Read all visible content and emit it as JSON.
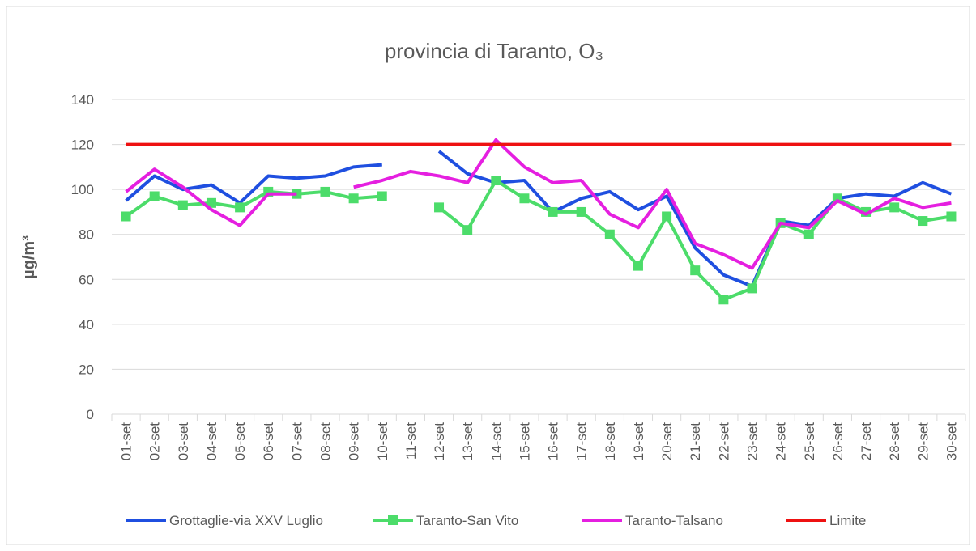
{
  "chart_data": {
    "type": "line",
    "title": "provincia di Taranto, O₃",
    "y_label": "µg/m³",
    "categories": [
      "01-set",
      "02-set",
      "03-set",
      "04-set",
      "05-set",
      "06-set",
      "07-set",
      "08-set",
      "09-set",
      "10-set",
      "11-set",
      "12-set",
      "13-set",
      "14-set",
      "15-set",
      "16-set",
      "17-set",
      "18-set",
      "19-set",
      "20-set",
      "21-set",
      "22-set",
      "23-set",
      "24-set",
      "25-set",
      "26-set",
      "27-set",
      "28-set",
      "29-set",
      "30-set"
    ],
    "series": [
      {
        "name": "Grottaglie-via XXV Luglio",
        "color": "#1f4fe0",
        "marker": false,
        "values": [
          95,
          106,
          100,
          102,
          94,
          106,
          105,
          106,
          110,
          111,
          null,
          117,
          107,
          103,
          104,
          90,
          96,
          99,
          91,
          97,
          74,
          62,
          57,
          86,
          84,
          96,
          98,
          97,
          103,
          98
        ]
      },
      {
        "name": "Taranto-San Vito",
        "color": "#4cdc6a",
        "marker": true,
        "values": [
          88,
          97,
          93,
          94,
          92,
          99,
          98,
          99,
          96,
          97,
          null,
          92,
          82,
          104,
          96,
          90,
          90,
          80,
          66,
          88,
          64,
          51,
          56,
          85,
          80,
          96,
          90,
          92,
          86,
          88
        ]
      },
      {
        "name": "Taranto-Talsano",
        "color": "#e51fe0",
        "marker": false,
        "values": [
          99,
          109,
          101,
          91,
          84,
          98,
          98,
          null,
          101,
          104,
          108,
          106,
          103,
          122,
          110,
          103,
          104,
          89,
          83,
          100,
          76,
          71,
          65,
          85,
          83,
          95,
          89,
          96,
          92,
          94
        ]
      },
      {
        "name": "Limite",
        "color": "#ee1111",
        "marker": false,
        "values": [
          120,
          120,
          120,
          120,
          120,
          120,
          120,
          120,
          120,
          120,
          120,
          120,
          120,
          120,
          120,
          120,
          120,
          120,
          120,
          120,
          120,
          120,
          120,
          120,
          120,
          120,
          120,
          120,
          120,
          120
        ]
      }
    ],
    "ylim": [
      0,
      140
    ],
    "yticks": [
      0,
      20,
      40,
      60,
      80,
      100,
      120,
      140
    ],
    "grid": true
  }
}
